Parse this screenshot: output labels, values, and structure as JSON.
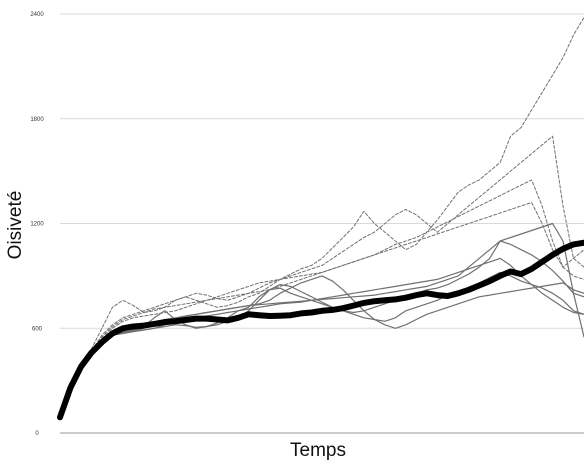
{
  "chart_data": {
    "type": "line",
    "title": "",
    "xlabel": "Temps",
    "ylabel": "Oisiveté",
    "ylim": [
      0,
      2400
    ],
    "yticks": [
      0,
      600,
      1200,
      1800,
      2400
    ],
    "xlim": [
      0,
      100
    ],
    "grid": true,
    "legend": "none",
    "colors": {
      "mean": "#000000",
      "solid": "#707070",
      "dashed": "#707070",
      "grid": "#d9d9d9",
      "axis": "#9a9a9a"
    },
    "x": [
      0,
      2,
      4,
      6,
      8,
      10,
      12,
      14,
      16,
      18,
      20,
      22,
      24,
      26,
      28,
      30,
      32,
      34,
      36,
      38,
      40,
      42,
      44,
      46,
      48,
      50,
      52,
      54,
      56,
      58,
      60,
      62,
      64,
      66,
      68,
      70,
      72,
      74,
      76,
      78,
      80,
      82,
      84,
      86,
      88,
      90,
      92,
      94,
      96,
      98,
      100
    ],
    "series": [
      {
        "style": "mean",
        "values": [
          90,
          260,
          380,
          460,
          520,
          570,
          600,
          610,
          615,
          625,
          635,
          640,
          648,
          655,
          655,
          650,
          645,
          660,
          680,
          675,
          670,
          672,
          675,
          685,
          690,
          700,
          705,
          715,
          730,
          745,
          755,
          760,
          765,
          775,
          790,
          800,
          790,
          785,
          800,
          820,
          845,
          870,
          900,
          925,
          910,
          940,
          980,
          1020,
          1055,
          1080,
          1090
        ]
      },
      {
        "style": "solid",
        "values": [
          90,
          260,
          380,
          460,
          520,
          560,
          590,
          600,
          610,
          660,
          700,
          650,
          620,
          600,
          610,
          630,
          660,
          700,
          720,
          780,
          820,
          830,
          800,
          780,
          760,
          740,
          720,
          700,
          680,
          660,
          650,
          640,
          660,
          700,
          720,
          740,
          760,
          790,
          810,
          830,
          860,
          890,
          920,
          900,
          870,
          850,
          830,
          800,
          760,
          700,
          680
        ]
      },
      {
        "style": "solid",
        "values": [
          90,
          260,
          380,
          460,
          520,
          570,
          580,
          585,
          590,
          600,
          610,
          620,
          615,
          605,
          610,
          620,
          640,
          660,
          700,
          760,
          820,
          850,
          840,
          810,
          780,
          750,
          720,
          700,
          690,
          700,
          720,
          740,
          760,
          780,
          800,
          820,
          830,
          850,
          880,
          910,
          950,
          1000,
          1100,
          1080,
          1050,
          1020,
          980,
          930,
          870,
          800,
          780
        ]
      },
      {
        "style": "solid",
        "values": [
          90,
          260,
          380,
          460,
          520,
          560,
          570,
          580,
          590,
          600,
          620,
          640,
          650,
          660,
          670,
          680,
          690,
          700,
          710,
          720,
          730,
          740,
          745,
          750,
          760,
          770,
          780,
          790,
          800,
          810,
          820,
          830,
          840,
          850,
          860,
          870,
          880,
          900,
          920,
          940,
          960,
          980,
          1000,
          960,
          900,
          850,
          800,
          760,
          720,
          690,
          680
        ]
      },
      {
        "style": "solid",
        "values": [
          90,
          260,
          380,
          460,
          520,
          565,
          575,
          590,
          610,
          630,
          650,
          660,
          670,
          680,
          690,
          700,
          710,
          720,
          730,
          740,
          760,
          800,
          830,
          860,
          880,
          900,
          870,
          820,
          760,
          700,
          650,
          620,
          600,
          620,
          650,
          680,
          700,
          720,
          740,
          760,
          780,
          790,
          800,
          810,
          820,
          830,
          840,
          850,
          860,
          820,
          800
        ]
      },
      {
        "style": "solid",
        "values": [
          90,
          260,
          380,
          460,
          520,
          560,
          575,
          585,
          600,
          620,
          640,
          655,
          670,
          680,
          690,
          700,
          710,
          720,
          730,
          735,
          740,
          745,
          750,
          755,
          760,
          765,
          770,
          775,
          780,
          785,
          790,
          800,
          810,
          820,
          830,
          840,
          860,
          880,
          900,
          950,
          1000,
          1050,
          1100,
          1120,
          1140,
          1160,
          1180,
          1200,
          1100,
          800,
          550
        ]
      },
      {
        "style": "dashed",
        "values": [
          90,
          260,
          380,
          480,
          600,
          720,
          760,
          730,
          690,
          700,
          720,
          760,
          780,
          760,
          740,
          720,
          730,
          750,
          780,
          800,
          840,
          880,
          910,
          940,
          960,
          1000,
          1060,
          1120,
          1180,
          1270,
          1200,
          1150,
          1100,
          1050,
          1080,
          1150,
          1220,
          1300,
          1380,
          1420,
          1450,
          1500,
          1550,
          1700,
          1750,
          1850,
          1950,
          2050,
          2150,
          2280,
          2380
        ]
      },
      {
        "style": "dashed",
        "values": [
          90,
          260,
          380,
          470,
          560,
          620,
          660,
          680,
          700,
          720,
          740,
          760,
          780,
          800,
          790,
          770,
          760,
          780,
          800,
          830,
          860,
          880,
          900,
          920,
          940,
          960,
          1000,
          1040,
          1080,
          1120,
          1150,
          1200,
          1250,
          1280,
          1250,
          1200,
          1150,
          1200,
          1250,
          1300,
          1350,
          1400,
          1450,
          1500,
          1550,
          1600,
          1650,
          1700,
          1300,
          1000,
          950
        ]
      },
      {
        "style": "dashed",
        "values": [
          90,
          260,
          380,
          465,
          540,
          600,
          640,
          660,
          670,
          680,
          690,
          700,
          720,
          740,
          760,
          780,
          800,
          820,
          840,
          860,
          870,
          880,
          890,
          900,
          910,
          920,
          940,
          960,
          980,
          1000,
          1020,
          1050,
          1080,
          1100,
          1120,
          1150,
          1180,
          1210,
          1240,
          1270,
          1300,
          1330,
          1360,
          1390,
          1420,
          1450,
          1300,
          1100,
          950,
          900,
          880
        ]
      },
      {
        "style": "dashed",
        "values": [
          90,
          260,
          380,
          470,
          550,
          610,
          650,
          670,
          690,
          710,
          720,
          730,
          740,
          750,
          760,
          770,
          780,
          790,
          800,
          810,
          820,
          840,
          860,
          880,
          900,
          920,
          940,
          960,
          980,
          1000,
          1020,
          1040,
          1060,
          1080,
          1100,
          1120,
          1140,
          1160,
          1180,
          1200,
          1220,
          1240,
          1260,
          1280,
          1300,
          1320,
          1200,
          1050,
          950,
          1000,
          1050
        ]
      }
    ]
  }
}
